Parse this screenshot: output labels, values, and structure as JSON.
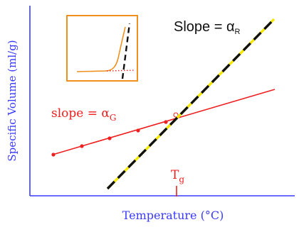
{
  "xlabel": "Temperature (°C)",
  "ylabel": "Specific Volume (ml/g)",
  "tg_label": {
    "main": "T",
    "sub": "g"
  },
  "rubbery": {
    "label_prefix": "Slope = ",
    "label_symbol": "α",
    "label_sub": "R"
  },
  "glassy": {
    "label_prefix": "slope = ",
    "label_symbol": "α",
    "label_sub": "G"
  },
  "colors": {
    "axis": "#3a3aff",
    "glassy": "#ee2020",
    "rubbery_dash": "#111111",
    "rubbery_gap": "#f4e800",
    "inset_border": "#f0901e",
    "tg_tick": "#ee2020",
    "text_dark": "#111111"
  },
  "chart_data": {
    "type": "line",
    "title": "",
    "xlabel": "Temperature (°C)",
    "ylabel": "Specific Volume (ml/g)",
    "series": [
      {
        "name": "slope = αG",
        "style": "solid red with point markers",
        "x": [
          0,
          40,
          82,
          120,
          162,
          208,
          250,
          340
        ],
        "y": [
          0,
          4,
          8,
          12,
          16,
          20,
          24,
          33
        ]
      },
      {
        "name": "Slope = αR",
        "style": "black/yellow dashed",
        "x": [
          120,
          380
        ],
        "y": [
          -35,
          207
        ]
      }
    ],
    "annotations": [
      "Tg at intersection"
    ],
    "grid": false
  }
}
